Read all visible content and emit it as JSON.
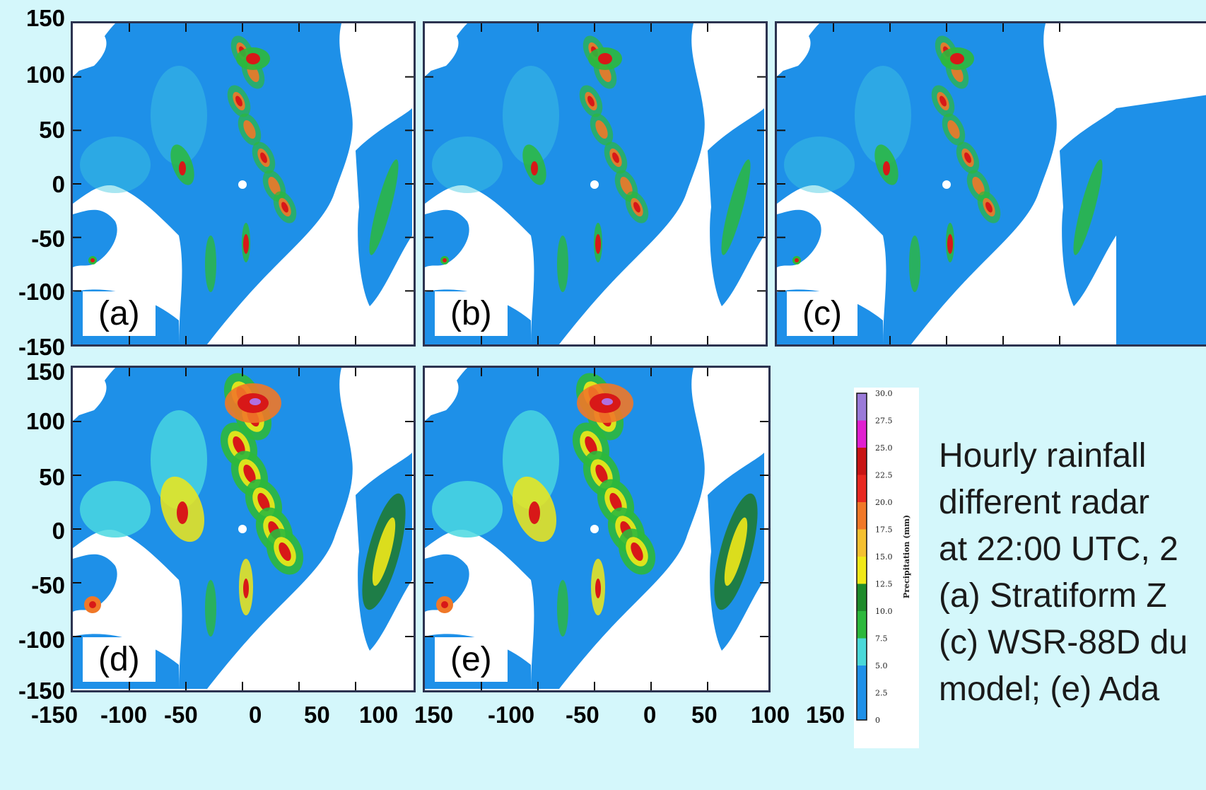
{
  "chart_data": {
    "type": "heatmap",
    "panels": [
      "(a)",
      "(b)",
      "(c)",
      "(d)",
      "(e)"
    ],
    "x_ticks": [
      -150,
      -100,
      -50,
      0,
      50,
      100,
      150
    ],
    "y_ticks": [
      150,
      100,
      50,
      0,
      -50,
      -100,
      -150
    ],
    "xlim": [
      -150,
      150
    ],
    "ylim": [
      -150,
      150
    ],
    "colorbar": {
      "label": "Precipitation (mm)",
      "ticks": [
        "30.0",
        "27.5",
        "25.0",
        "22.5",
        "20.0",
        "17.5",
        "15.0",
        "12.5",
        "10.0",
        "7.5",
        "5.0",
        "2.5",
        "0"
      ],
      "colors": [
        "#9a7ad8",
        "#e020d0",
        "#c81414",
        "#e82820",
        "#f07828",
        "#f4c030",
        "#f0e818",
        "#1e8a2a",
        "#2cb83c",
        "#4ad8d8",
        "#1e90e8",
        "#1e90e8"
      ]
    }
  },
  "x_tick_labels": [
    "-150",
    "-100",
    "-50",
    "0",
    "50",
    "100",
    "150",
    "-100",
    "-50",
    "0",
    "50",
    "100",
    "150"
  ],
  "y_tick_labels_top": [
    "150",
    "100",
    "50",
    "0",
    "-50",
    "-100",
    "-150"
  ],
  "y_tick_labels_bottom": [
    "150",
    "100",
    "50",
    "0",
    "-50",
    "-100",
    "-150"
  ],
  "caption_lines": [
    "Hourly rainfall",
    "different radar",
    "at 22:00 UTC, 2",
    "(a) Stratiform Z",
    "(c) WSR-88D du",
    "model; (e) Ada"
  ]
}
